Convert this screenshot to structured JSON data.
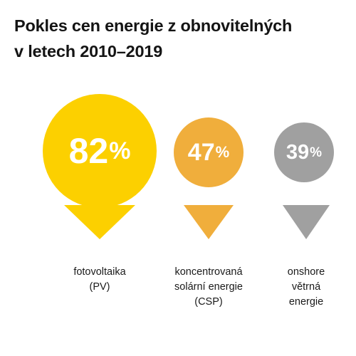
{
  "title": {
    "line1": "Pokles cen energie z obnovitelných",
    "line2": "v letech 2010–2019"
  },
  "items": [
    {
      "value": "82",
      "unit": "%",
      "color": "#FCD000",
      "label_lines": [
        "fotovoltaika",
        "(PV)"
      ]
    },
    {
      "value": "47",
      "unit": "%",
      "color": "#F0AE3C",
      "label_lines": [
        "koncentrovaná",
        "solární energie",
        "(CSP)"
      ]
    },
    {
      "value": "39",
      "unit": "%",
      "color": "#A0A0A0",
      "label_lines": [
        "onshore",
        "větrná",
        "energie"
      ]
    }
  ]
}
